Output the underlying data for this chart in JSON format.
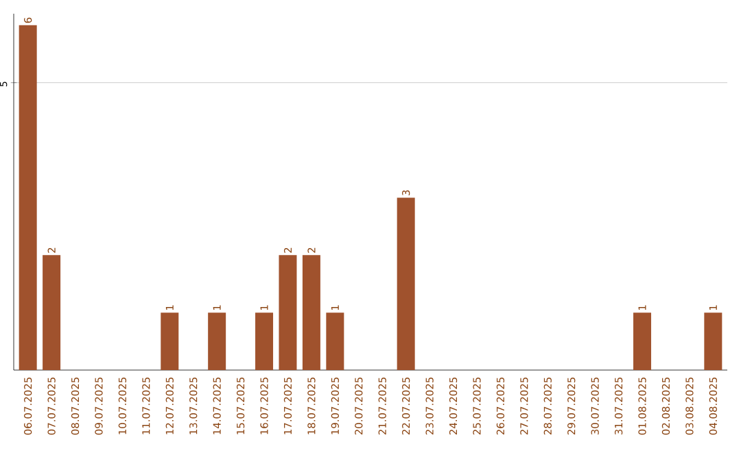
{
  "chart_data": {
    "type": "bar",
    "categories": [
      "06.07.2025",
      "07.07.2025",
      "08.07.2025",
      "09.07.2025",
      "10.07.2025",
      "11.07.2025",
      "12.07.2025",
      "13.07.2025",
      "14.07.2025",
      "15.07.2025",
      "16.07.2025",
      "17.07.2025",
      "18.07.2025",
      "19.07.2025",
      "20.07.2025",
      "21.07.2025",
      "22.07.2025",
      "23.07.2025",
      "24.07.2025",
      "25.07.2025",
      "26.07.2025",
      "27.07.2025",
      "28.07.2025",
      "29.07.2025",
      "30.07.2025",
      "31.07.2025",
      "01.08.2025",
      "02.08.2025",
      "03.08.2025",
      "04.08.2025"
    ],
    "values": [
      6,
      2,
      0,
      0,
      0,
      0,
      1,
      0,
      1,
      0,
      1,
      2,
      2,
      1,
      0,
      0,
      3,
      0,
      0,
      0,
      0,
      0,
      0,
      0,
      0,
      0,
      1,
      0,
      0,
      1
    ],
    "value_labels": [
      "6",
      "2",
      null,
      null,
      null,
      null,
      "1",
      null,
      "1",
      null,
      "1",
      "2",
      "2",
      "1",
      null,
      null,
      "3",
      null,
      null,
      null,
      null,
      null,
      null,
      null,
      null,
      null,
      "1",
      null,
      null,
      "1"
    ],
    "color": "#a0522d",
    "ylim": [
      0,
      6.2
    ],
    "yticks": [
      5
    ],
    "grid": "y"
  }
}
